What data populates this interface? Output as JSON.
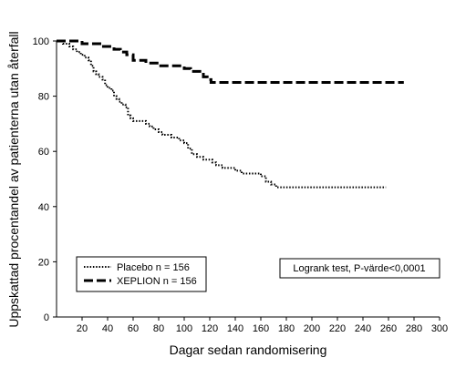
{
  "chart_data": {
    "type": "line",
    "title": "",
    "xlabel": "Dagar sedan randomisering",
    "ylabel": "Uppskattad procentandel av patienterna utan återfall",
    "xlim": [
      0,
      300
    ],
    "ylim": [
      0,
      100
    ],
    "x_ticks": [
      20,
      40,
      60,
      80,
      100,
      120,
      140,
      160,
      180,
      200,
      220,
      240,
      260,
      280,
      300
    ],
    "y_ticks": [
      0,
      20,
      40,
      60,
      80,
      100
    ],
    "grid": false,
    "legend_placement": "bottom-left",
    "series": [
      {
        "name": "Placebo n = 156",
        "line_style": "dotted",
        "color": "#000000",
        "x": [
          0,
          5,
          10,
          13,
          16,
          19,
          22,
          25,
          27,
          29,
          31,
          33,
          36,
          38,
          40,
          43,
          45,
          47,
          49,
          51,
          54,
          56,
          58,
          60,
          63,
          66,
          70,
          73,
          76,
          80,
          83,
          86,
          90,
          93,
          96,
          100,
          103,
          106,
          110,
          115,
          118,
          122,
          125,
          130,
          135,
          140,
          145,
          150,
          155,
          160,
          164,
          168,
          172,
          176,
          180,
          190,
          200,
          220,
          240,
          258
        ],
        "y": [
          100,
          99,
          98,
          97,
          96,
          95,
          94,
          93,
          91,
          89,
          88,
          87,
          86,
          84,
          83,
          82,
          80,
          79,
          78,
          77,
          76,
          73,
          72,
          71,
          71,
          71,
          70,
          69,
          68,
          67,
          66,
          66,
          65,
          65,
          64,
          63,
          61,
          59,
          58,
          57,
          57,
          56,
          55,
          54,
          54,
          53,
          52,
          52,
          52,
          51,
          49,
          48,
          47,
          47,
          47,
          47,
          47,
          47,
          47,
          47
        ]
      },
      {
        "name": "XEPLION n = 156",
        "line_style": "dashed",
        "color": "#000000",
        "x": [
          0,
          10,
          20,
          30,
          35,
          40,
          45,
          50,
          55,
          60,
          65,
          70,
          75,
          80,
          85,
          90,
          100,
          105,
          110,
          115,
          118,
          121,
          125,
          130,
          150,
          200,
          240,
          272
        ],
        "y": [
          100,
          100,
          99,
          99,
          98,
          98,
          97,
          96,
          95,
          93,
          93,
          92,
          92,
          91,
          91,
          91,
          90,
          89,
          89,
          87,
          86,
          85,
          85,
          85,
          85,
          85,
          85,
          85
        ]
      }
    ],
    "annotations": [
      "Logrank test, P-värde<0,0001"
    ]
  }
}
